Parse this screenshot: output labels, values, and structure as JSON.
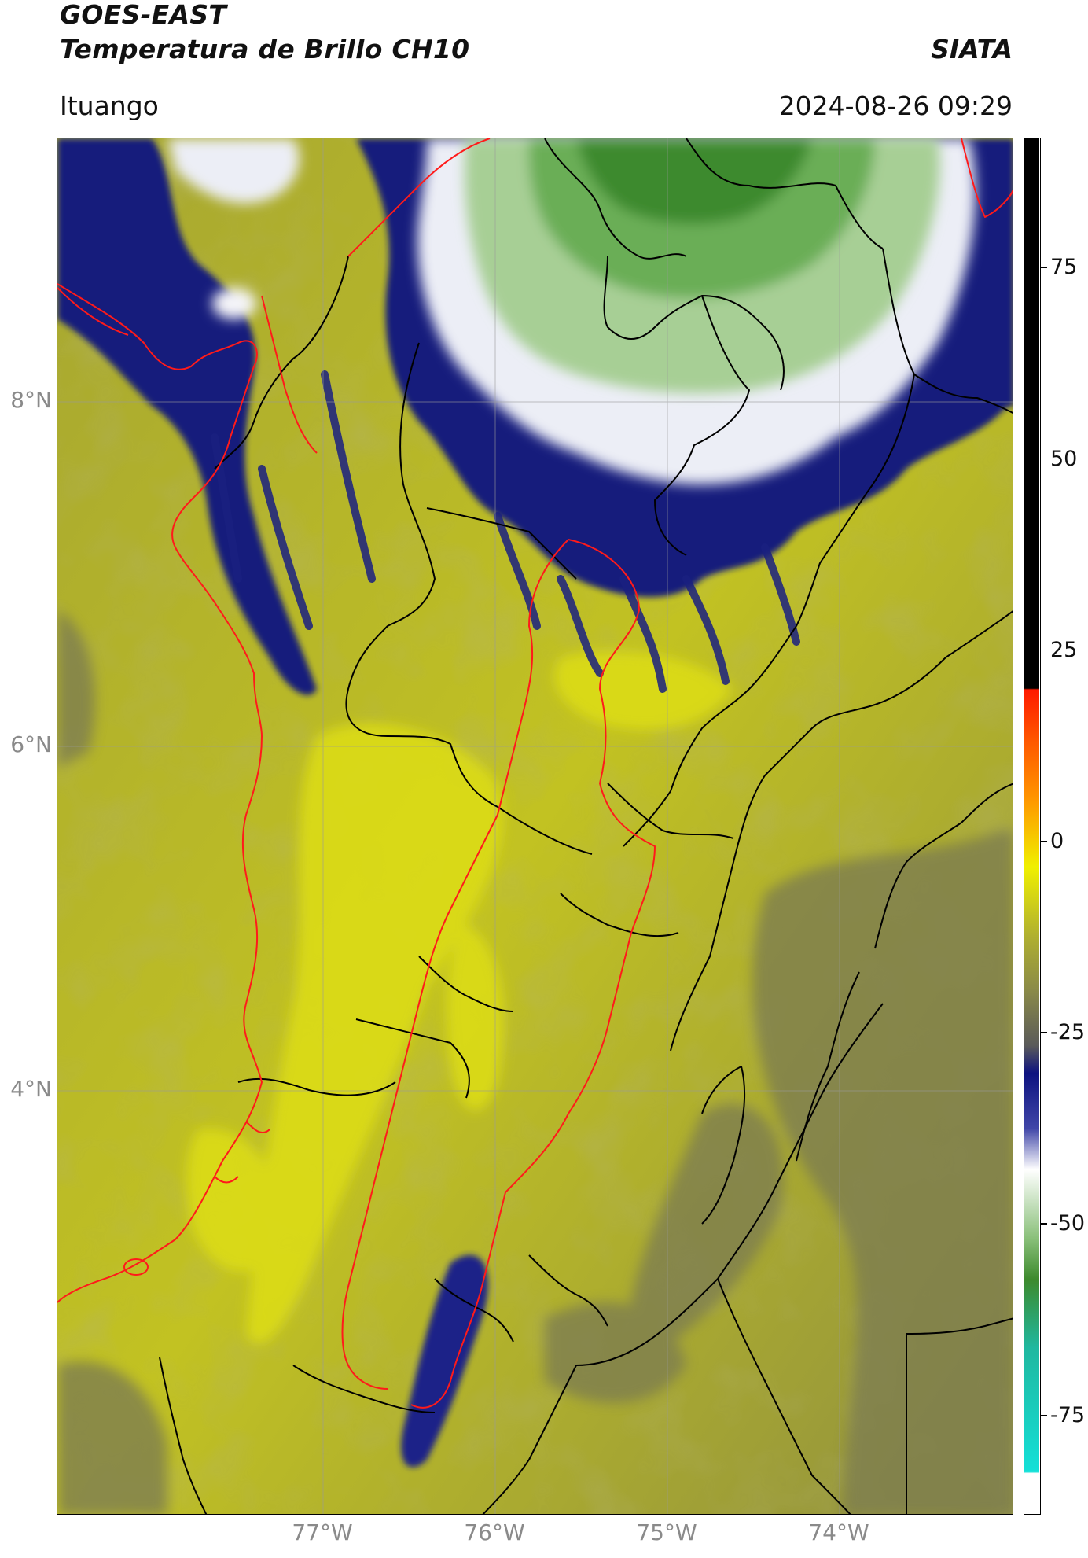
{
  "header": {
    "satellite": "GOES-EAST",
    "product": "Temperatura de Brillo CH10",
    "brand": "SIATA",
    "location": "Ituango",
    "timestamp": "2024-08-26 09:29"
  },
  "map": {
    "lat_labels": [
      "8°N",
      "6°N",
      "4°N"
    ],
    "lon_labels": [
      "77°W",
      "76°W",
      "75°W",
      "74°W"
    ],
    "colors": {
      "background_yellow": "#b3b32a",
      "bright_yellow": "#e0e013",
      "olive": "#8f8f3e",
      "gray_olive": "#7a7a55",
      "navy": "#141a7a",
      "white": "#f4f4f8",
      "green_light": "#a8cf96",
      "green_dark": "#3d8a2d",
      "border_black": "#000000",
      "border_red": "#ff1a1a"
    }
  },
  "colorbar": {
    "tick_labels": [
      "75",
      "50",
      "25",
      "0",
      "-25",
      "-50",
      "-75"
    ],
    "tick_values": [
      75,
      50,
      25,
      0,
      -25,
      -50,
      -75
    ],
    "range": [
      -88,
      92
    ],
    "colors": {
      "black": "#000000",
      "red": "#ff1a00",
      "orange": "#ff9500",
      "yellow": "#f0f000",
      "olive": "#8a8a48",
      "gray": "#5a5a5a",
      "navy": "#0d1280",
      "white": "#ffffff",
      "green": "#3d8a2d",
      "teal": "#1fb8a0",
      "cyan": "#14e0d8"
    }
  }
}
